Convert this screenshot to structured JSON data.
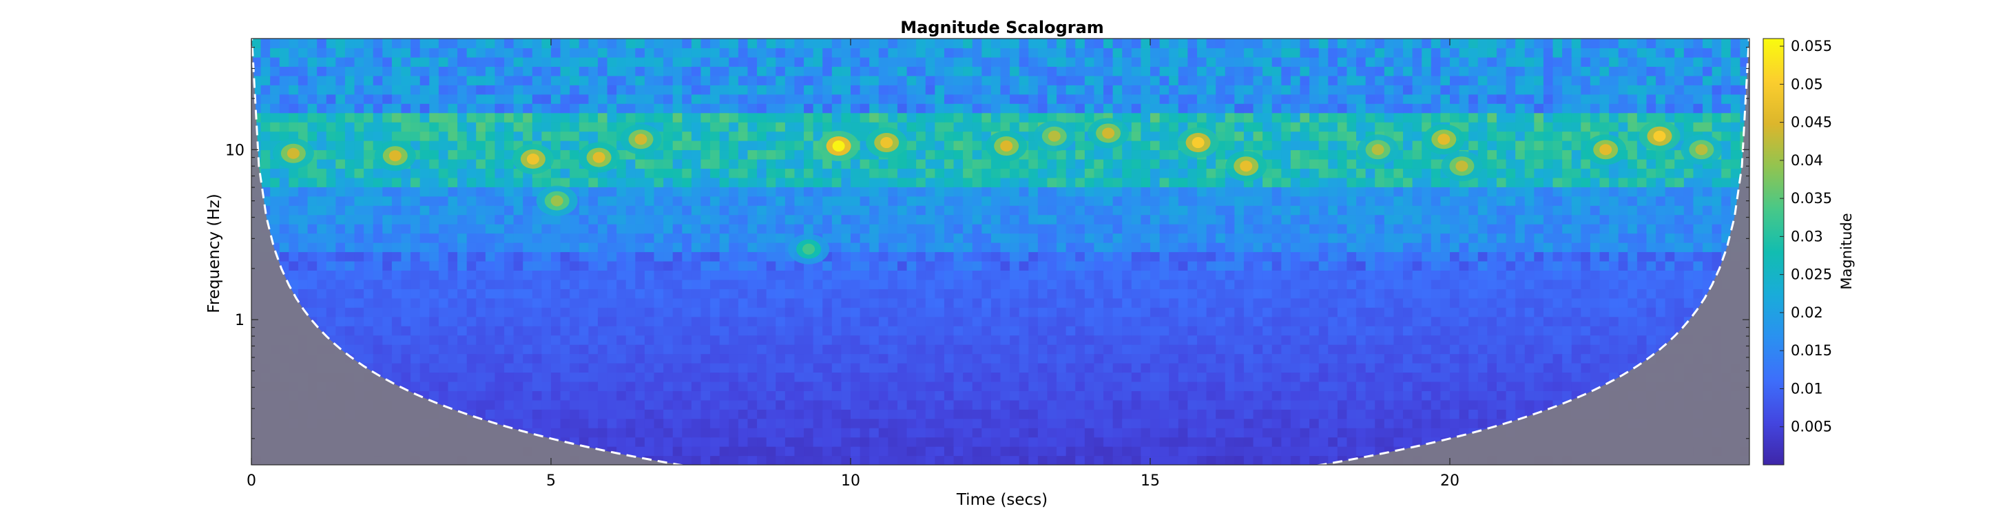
{
  "chart_data": {
    "type": "heatmap",
    "title": "Magnitude Scalogram",
    "xlabel": "Time (secs)",
    "ylabel": "Frequency (Hz)",
    "colorbar_label": "Magnitude",
    "x_range": [
      0,
      25
    ],
    "y_range": [
      0.14,
      45
    ],
    "y_scale": "log",
    "x_ticks": [
      "0",
      "5",
      "10",
      "15",
      "20"
    ],
    "x_tick_values": [
      0,
      5,
      10,
      15,
      20
    ],
    "y_ticks": [
      "1",
      "10"
    ],
    "y_tick_values": [
      1,
      10
    ],
    "color_range": [
      0,
      0.056
    ],
    "colorbar_ticks": [
      "0.005",
      "0.01",
      "0.015",
      "0.02",
      "0.025",
      "0.03",
      "0.035",
      "0.04",
      "0.045",
      "0.05",
      "0.055"
    ],
    "colorbar_tick_values": [
      0.005,
      0.01,
      0.015,
      0.02,
      0.025,
      0.03,
      0.035,
      0.04,
      0.045,
      0.05,
      0.055
    ],
    "colormap": "parula",
    "cone_of_influence": "dashed white line, shaded grey outside",
    "hotspots_hz": [
      {
        "t": 0.7,
        "f": 9.5,
        "mag": 0.044
      },
      {
        "t": 2.4,
        "f": 9.2,
        "mag": 0.045
      },
      {
        "t": 4.7,
        "f": 8.8,
        "mag": 0.048
      },
      {
        "t": 5.1,
        "f": 5.0,
        "mag": 0.04
      },
      {
        "t": 5.8,
        "f": 9.0,
        "mag": 0.046
      },
      {
        "t": 6.5,
        "f": 11.5,
        "mag": 0.044
      },
      {
        "t": 9.3,
        "f": 2.6,
        "mag": 0.033
      },
      {
        "t": 9.8,
        "f": 10.5,
        "mag": 0.055
      },
      {
        "t": 10.6,
        "f": 11.0,
        "mag": 0.048
      },
      {
        "t": 12.6,
        "f": 10.5,
        "mag": 0.045
      },
      {
        "t": 13.4,
        "f": 12.0,
        "mag": 0.042
      },
      {
        "t": 14.3,
        "f": 12.5,
        "mag": 0.044
      },
      {
        "t": 15.8,
        "f": 11.0,
        "mag": 0.05
      },
      {
        "t": 16.6,
        "f": 8.0,
        "mag": 0.047
      },
      {
        "t": 18.8,
        "f": 10.0,
        "mag": 0.042
      },
      {
        "t": 19.9,
        "f": 11.5,
        "mag": 0.046
      },
      {
        "t": 20.2,
        "f": 8.0,
        "mag": 0.043
      },
      {
        "t": 22.6,
        "f": 10.0,
        "mag": 0.046
      },
      {
        "t": 23.5,
        "f": 12.0,
        "mag": 0.05
      },
      {
        "t": 24.2,
        "f": 10.0,
        "mag": 0.042
      }
    ]
  }
}
